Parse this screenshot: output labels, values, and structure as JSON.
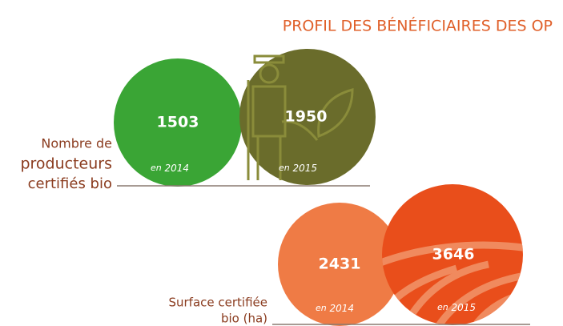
{
  "title": "PROFIL DES BÉNÉFICIAIRES DES OP",
  "groups": [
    {
      "label_lines": [
        "Nombre de",
        "producteurs",
        "certifiés bio"
      ],
      "items": [
        {
          "value": "1503",
          "prefix": "en",
          "year": "2014"
        },
        {
          "value": "1950",
          "prefix": "en",
          "year": "2015"
        }
      ]
    },
    {
      "label_lines": [
        "Surface certifiée",
        "bio (ha)"
      ],
      "items": [
        {
          "value": "2431",
          "prefix": "en",
          "year": "2014"
        },
        {
          "value": "3646",
          "prefix": "en",
          "year": "2015"
        }
      ]
    }
  ]
}
